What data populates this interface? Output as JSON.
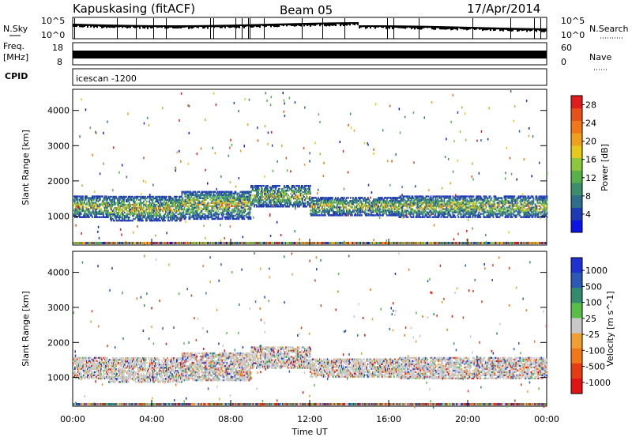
{
  "header": {
    "station": "Kapuskasing (fitACF)",
    "beam": "Beam 05",
    "date": "17/Apr/2014"
  },
  "summary_panels": {
    "nsky_label": "N.Sky",
    "nsearch_label": "N.Search",
    "nsky_ticks": [
      "10^5",
      "10^0"
    ],
    "freq_label_line1": "Freq.",
    "freq_label_line2": "[MHz]",
    "freq_ticks": [
      "18",
      "8"
    ],
    "nave_label": "Nave",
    "nave_ticks": [
      "60",
      "0"
    ],
    "cpid_label": "CPID",
    "cpid_value": "icescan -1200"
  },
  "chart_data": [
    {
      "type": "heatmap",
      "title": "",
      "xlabel": "Time UT",
      "ylabel": "Slant Range [km]",
      "xlim": [
        0,
        24
      ],
      "ylim": [
        180,
        4600
      ],
      "x_ticks": [
        "00:00",
        "04:00",
        "08:00",
        "12:00",
        "16:00",
        "20:00",
        "00:00"
      ],
      "y_ticks": [
        "1000",
        "2000",
        "3000",
        "4000"
      ],
      "colorbar": {
        "label": "Power [dB]",
        "ticks": [
          "4",
          "8",
          "12",
          "16",
          "20",
          "24",
          "28"
        ],
        "range": [
          0,
          30
        ],
        "colors": [
          "#0a14e6",
          "#1e3ab4",
          "#2f6e8a",
          "#3c8c6e",
          "#58b04a",
          "#8cc83c",
          "#e6c81e",
          "#f0a01e",
          "#f07818",
          "#e8501a",
          "#e01c1c"
        ]
      },
      "echo_bands": [
        {
          "t_start": 0.0,
          "t_end": 1.8,
          "range_center": 1300,
          "range_halfwidth": 300
        },
        {
          "t_start": 1.8,
          "t_end": 5.5,
          "range_center": 1250,
          "range_halfwidth": 350
        },
        {
          "t_start": 5.5,
          "t_end": 9.0,
          "range_center": 1350,
          "range_halfwidth": 400
        },
        {
          "t_start": 9.0,
          "t_end": 12.0,
          "range_center": 1600,
          "range_halfwidth": 300
        },
        {
          "t_start": 12.0,
          "t_end": 16.5,
          "range_center": 1300,
          "range_halfwidth": 250
        },
        {
          "t_start": 16.5,
          "t_end": 24.0,
          "range_center": 1300,
          "range_halfwidth": 300
        }
      ]
    },
    {
      "type": "heatmap",
      "title": "",
      "xlabel": "Time UT",
      "ylabel": "Slant Range [km]",
      "xlim": [
        0,
        24
      ],
      "ylim": [
        180,
        4600
      ],
      "x_ticks": [
        "00:00",
        "04:00",
        "08:00",
        "12:00",
        "16:00",
        "20:00",
        "00:00"
      ],
      "y_ticks": [
        "1000",
        "2000",
        "3000",
        "4000"
      ],
      "colorbar": {
        "label": "Velocity [m s^-1]",
        "ticks": [
          "1000",
          "500",
          "100",
          "25",
          "-25",
          "-100",
          "-500",
          "-1000"
        ],
        "colors": [
          "#1e32d2",
          "#2a5ab4",
          "#328c6e",
          "#58be46",
          "#c8c8c8",
          "#f0a032",
          "#f07818",
          "#e63c14",
          "#e01414"
        ]
      },
      "echo_bands": [
        {
          "t_start": 0.0,
          "t_end": 1.8,
          "range_center": 1300,
          "range_halfwidth": 300
        },
        {
          "t_start": 1.8,
          "t_end": 5.5,
          "range_center": 1250,
          "range_halfwidth": 350
        },
        {
          "t_start": 5.5,
          "t_end": 9.0,
          "range_center": 1350,
          "range_halfwidth": 400
        },
        {
          "t_start": 9.0,
          "t_end": 12.0,
          "range_center": 1600,
          "range_halfwidth": 300
        },
        {
          "t_start": 12.0,
          "t_end": 16.5,
          "range_center": 1300,
          "range_halfwidth": 250
        },
        {
          "t_start": 16.5,
          "t_end": 24.0,
          "range_center": 1300,
          "range_halfwidth": 300
        }
      ]
    }
  ]
}
